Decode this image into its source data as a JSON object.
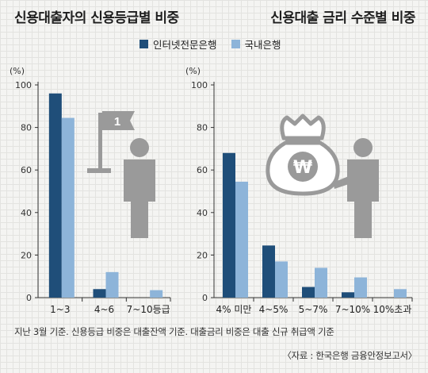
{
  "titles": {
    "left": "신용대출자의 신용등급별 비중",
    "right": "신용대출 금리 수준별 비중"
  },
  "legend": [
    {
      "label": "인터넷전문은행",
      "color": "#1f4e79"
    },
    {
      "label": "국내은행",
      "color": "#8db4d9"
    }
  ],
  "note": "지난 3월 기준. 신용등급 비중은 대출잔액 기준. 대출금리 비중은 대출 신규 취급액 기준",
  "source": "〈자료 : 한국은행 금융안정보고서〉",
  "flag_text": "1",
  "won_text": "₩",
  "chart_data": [
    {
      "type": "bar",
      "title": "신용대출자의 신용등급별 비중",
      "unit": "(%)",
      "categories": [
        "1~3",
        "4~6",
        "7~10등급"
      ],
      "ylim": [
        0,
        100
      ],
      "yticks": [
        0,
        20,
        40,
        60,
        80,
        100
      ],
      "series": [
        {
          "name": "인터넷전문은행",
          "values": [
            96,
            4,
            0
          ]
        },
        {
          "name": "국내은행",
          "values": [
            84.5,
            12,
            3.5
          ]
        }
      ]
    },
    {
      "type": "bar",
      "title": "신용대출 금리 수준별 비중",
      "unit": "(%)",
      "categories": [
        "4% 미만",
        "4~5%",
        "5~7%",
        "7~10%",
        "10%초과"
      ],
      "ylim": [
        0,
        100
      ],
      "yticks": [
        0,
        20,
        40,
        60,
        80,
        100
      ],
      "series": [
        {
          "name": "인터넷전문은행",
          "values": [
            68,
            24.5,
            5,
            2.5,
            0
          ]
        },
        {
          "name": "국내은행",
          "values": [
            54.5,
            17,
            14,
            9.5,
            4
          ]
        }
      ]
    }
  ]
}
